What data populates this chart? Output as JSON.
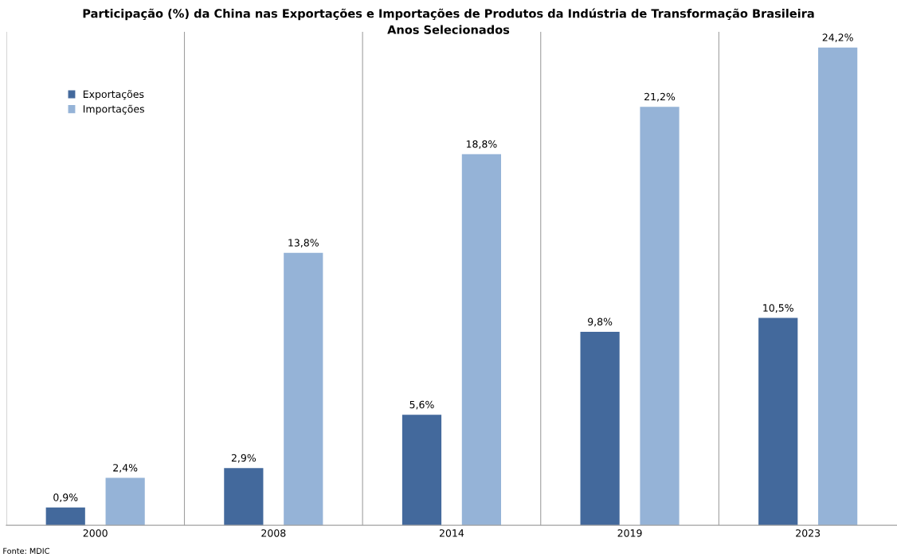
{
  "chart_data": {
    "type": "bar",
    "title": "Participação (%) da China nas Exportações e Importações de Produtos da Indústria de Transformação Brasileira",
    "subtitle": "Anos Selecionados",
    "categories": [
      "2000",
      "2008",
      "2014",
      "2019",
      "2023"
    ],
    "series": [
      {
        "name": "Exportações",
        "color": "#43699c",
        "values": [
          0.9,
          2.9,
          5.6,
          9.8,
          10.5
        ],
        "value_labels": [
          "0,9%",
          "2,9%",
          "5,6%",
          "9,8%",
          "10,5%"
        ]
      },
      {
        "name": "Importações",
        "color": "#95b3d7",
        "values": [
          2.4,
          13.8,
          18.8,
          21.2,
          24.2
        ],
        "value_labels": [
          "2,4%",
          "13,8%",
          "18,8%",
          "21,2%",
          "24,2%"
        ]
      }
    ],
    "ylim": [
      0,
      25
    ],
    "grid": "x",
    "legend": "top left",
    "tick_labels": "x",
    "annotations": [
      "Fonte: MDIC"
    ]
  }
}
